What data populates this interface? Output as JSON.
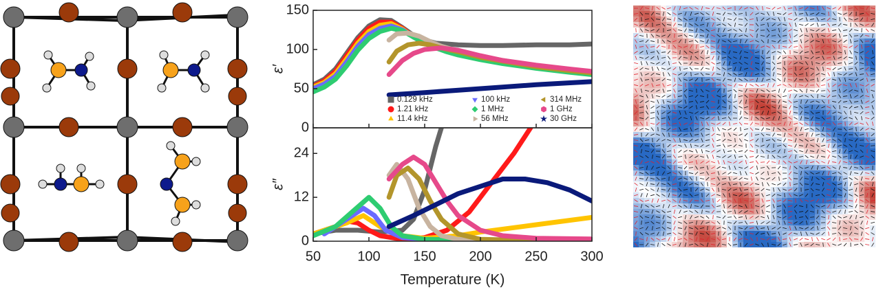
{
  "chart_data": [
    {
      "type": "line",
      "ylabel": "ε′",
      "xlim": [
        50,
        300
      ],
      "xticks": [
        50,
        100,
        150,
        200,
        250,
        300
      ],
      "ylim": [
        0,
        150
      ],
      "yticks": [
        0,
        50,
        100,
        150
      ],
      "legend": "lower right",
      "series": [
        {
          "name": "0.129 kHz",
          "color": "#666666",
          "marker": "square",
          "x": [
            50,
            60,
            70,
            80,
            90,
            100,
            110,
            120,
            130,
            140,
            150,
            160,
            170,
            180,
            200,
            220,
            250,
            280,
            300
          ],
          "values": [
            55,
            62,
            75,
            95,
            115,
            130,
            138,
            137,
            128,
            118,
            112,
            108,
            107,
            106,
            105,
            105,
            106,
            106,
            107
          ]
        },
        {
          "name": "1.21 kHz",
          "color": "#ff1a1a",
          "marker": "circle",
          "x": [
            50,
            60,
            70,
            80,
            90,
            100,
            110,
            120,
            130,
            140,
            150,
            160,
            170,
            180,
            200,
            220,
            250,
            280,
            300
          ],
          "values": [
            53,
            60,
            72,
            92,
            112,
            127,
            135,
            135,
            127,
            116,
            108,
            102,
            98,
            95,
            90,
            85,
            79,
            74,
            71
          ]
        },
        {
          "name": "11.4 kHz",
          "color": "#ffc400",
          "marker": "triangle-up",
          "x": [
            50,
            60,
            70,
            80,
            90,
            100,
            110,
            120,
            130,
            140,
            150,
            160,
            170,
            180,
            200,
            220,
            250,
            280,
            300
          ],
          "values": [
            52,
            58,
            69,
            88,
            108,
            123,
            131,
            133,
            126,
            116,
            108,
            102,
            98,
            95,
            89,
            84,
            78,
            73,
            70
          ]
        },
        {
          "name": "100 kHz",
          "color": "#6b6bff",
          "marker": "triangle-down",
          "x": [
            50,
            60,
            70,
            80,
            90,
            100,
            110,
            120,
            130,
            140,
            150,
            160,
            170,
            180,
            200,
            220,
            250,
            280,
            300
          ],
          "values": [
            50,
            56,
            66,
            84,
            104,
            119,
            127,
            130,
            125,
            116,
            108,
            102,
            98,
            94,
            88,
            83,
            77,
            72,
            69
          ]
        },
        {
          "name": "1 MHz",
          "color": "#2ecc71",
          "marker": "diamond",
          "x": [
            50,
            60,
            70,
            80,
            90,
            100,
            110,
            120,
            130,
            140,
            150,
            160,
            170,
            180,
            200,
            220,
            250,
            280,
            300
          ],
          "values": [
            46,
            52,
            62,
            79,
            99,
            114,
            123,
            127,
            124,
            116,
            108,
            102,
            97,
            93,
            87,
            82,
            76,
            71,
            68
          ]
        },
        {
          "name": "56 MHz",
          "color": "#c8b4a0",
          "marker": "triangle-left",
          "x": [
            118,
            125,
            135,
            145,
            155,
            165,
            180,
            200,
            220,
            250,
            280,
            300
          ],
          "values": [
            112,
            120,
            121,
            117,
            110,
            104,
            98,
            91,
            86,
            79,
            74,
            71
          ]
        },
        {
          "name": "314 MHz",
          "color": "#b3952b",
          "marker": "triangle-right",
          "x": [
            118,
            125,
            135,
            145,
            155,
            165,
            180,
            200,
            220,
            250,
            280,
            300
          ],
          "values": [
            84,
            98,
            106,
            108,
            106,
            102,
            97,
            90,
            85,
            78,
            73,
            70
          ]
        },
        {
          "name": "1 GHz",
          "color": "#e6498a",
          "marker": "hexagon",
          "x": [
            118,
            130,
            140,
            150,
            165,
            180,
            200,
            220,
            250,
            280,
            300
          ],
          "values": [
            68,
            86,
            95,
            100,
            102,
            99,
            92,
            86,
            80,
            75,
            72
          ]
        },
        {
          "name": "30 GHz",
          "color": "#0a1a7a",
          "marker": "star",
          "x": [
            118,
            150,
            200,
            250,
            300
          ],
          "values": [
            42,
            45,
            50,
            55,
            59
          ]
        }
      ]
    },
    {
      "type": "line",
      "ylabel": "ε″",
      "xlabel": "Temperature (K)",
      "xlim": [
        50,
        300
      ],
      "xticks": [
        50,
        100,
        150,
        200,
        250,
        300
      ],
      "ylim": [
        0,
        31
      ],
      "yticks": [
        0,
        12,
        24
      ],
      "series": [
        {
          "color": "#666666",
          "x": [
            50,
            70,
            90,
            110,
            130,
            140,
            150,
            160,
            165
          ],
          "values": [
            2,
            3,
            3,
            2.5,
            3,
            6,
            14,
            26,
            31
          ]
        },
        {
          "color": "#ff1a1a",
          "x": [
            50,
            70,
            80,
            90,
            100,
            110,
            130,
            150,
            170,
            190,
            210,
            230,
            245
          ],
          "values": [
            2,
            4,
            5.5,
            5,
            3,
            1.5,
            0.5,
            1,
            3,
            8,
            16,
            24,
            31
          ]
        },
        {
          "color": "#ffc400",
          "x": [
            50,
            80,
            95,
            110,
            130,
            150,
            180,
            200,
            250,
            300
          ],
          "values": [
            2,
            5,
            7,
            4,
            1.5,
            0.8,
            1.5,
            2.5,
            4.5,
            6.5
          ]
        },
        {
          "color": "#6b6bff",
          "x": [
            60,
            80,
            95,
            105,
            115,
            130,
            150,
            200,
            300
          ],
          "values": [
            2,
            6,
            9,
            7,
            3,
            1,
            0.5,
            0.3,
            0.3
          ]
        },
        {
          "color": "#2ecc71",
          "x": [
            50,
            70,
            85,
            100,
            110,
            120,
            130,
            150,
            200,
            300
          ],
          "values": [
            1.5,
            4,
            8,
            12,
            9,
            4,
            1.5,
            0.5,
            0.2,
            0.2
          ]
        },
        {
          "color": "#c8b4a0",
          "x": [
            118,
            125,
            135,
            145,
            155,
            165,
            180,
            220
          ],
          "values": [
            18,
            21,
            17,
            9,
            4,
            1.5,
            0.5,
            0.2
          ]
        },
        {
          "color": "#b3952b",
          "x": [
            118,
            125,
            135,
            145,
            155,
            165,
            180,
            200,
            250
          ],
          "values": [
            12,
            18,
            20,
            17,
            11,
            6,
            2,
            0.5,
            0.2
          ]
        },
        {
          "color": "#e6498a",
          "x": [
            118,
            130,
            140,
            150,
            160,
            170,
            180,
            200,
            220,
            250,
            300
          ],
          "values": [
            17,
            21,
            23,
            21,
            16,
            11,
            7,
            3,
            1.5,
            0.8,
            0.6
          ]
        },
        {
          "color": "#0a1a7a",
          "x": [
            118,
            140,
            160,
            180,
            200,
            220,
            240,
            260,
            280,
            300
          ],
          "values": [
            4,
            7,
            10,
            13,
            15,
            17,
            17,
            16,
            14,
            11
          ]
        }
      ]
    }
  ]
}
